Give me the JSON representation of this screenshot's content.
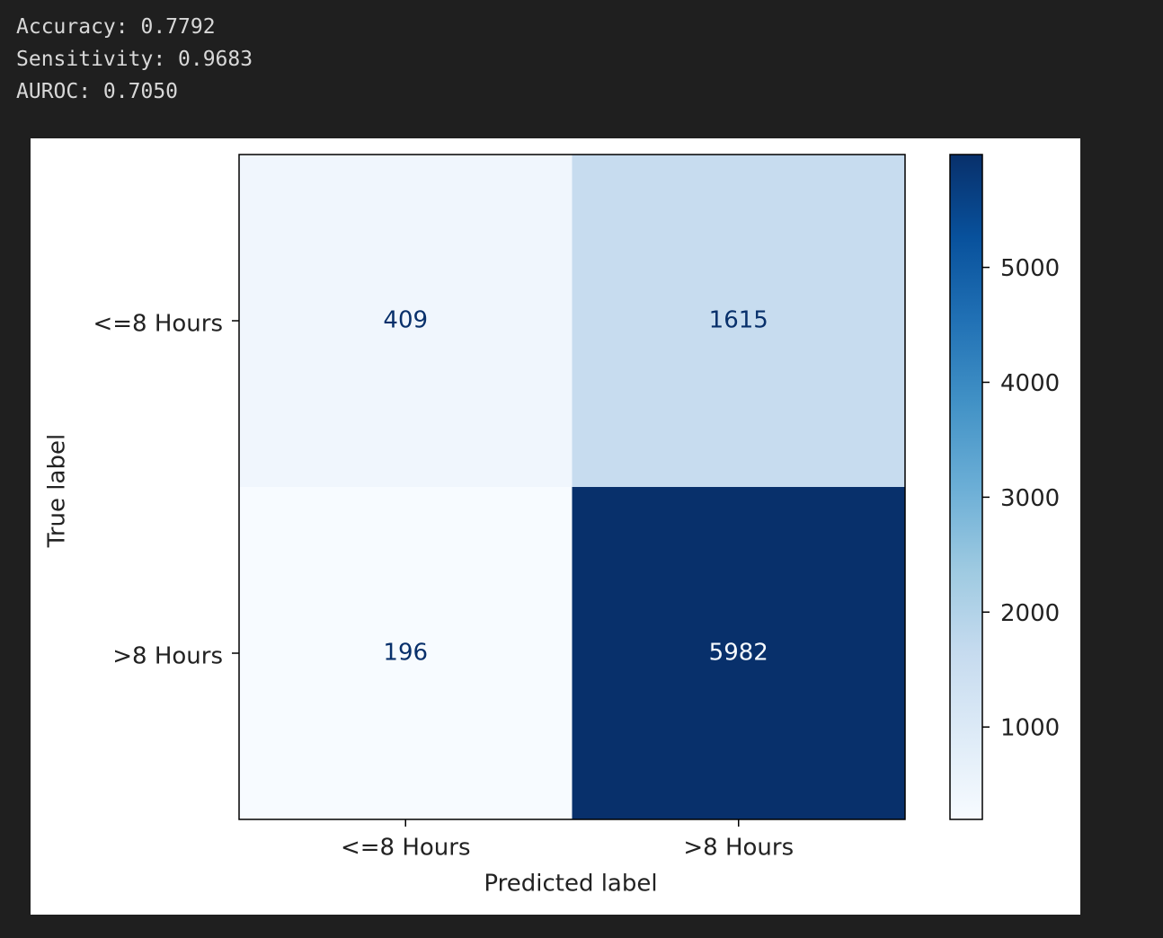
{
  "output": {
    "lines": [
      "Accuracy: 0.7792",
      "Sensitivity: 0.9683",
      "AUROC: 0.7050"
    ]
  },
  "chart_data": {
    "type": "heatmap",
    "x_categories": [
      "<=8 Hours",
      ">8 Hours"
    ],
    "y_categories": [
      "<=8 Hours",
      ">8 Hours"
    ],
    "values": [
      [
        409,
        1615
      ],
      [
        196,
        5982
      ]
    ],
    "xlabel": "Predicted label",
    "ylabel": "True label",
    "clim": [
      196,
      5982
    ],
    "cticks": [
      1000,
      2000,
      3000,
      4000,
      5000
    ],
    "colormap": [
      "#f7fbff",
      "#deebf7",
      "#c6dbef",
      "#9ecae1",
      "#6baed6",
      "#4292c6",
      "#2171b5",
      "#08519c",
      "#08306b"
    ]
  }
}
